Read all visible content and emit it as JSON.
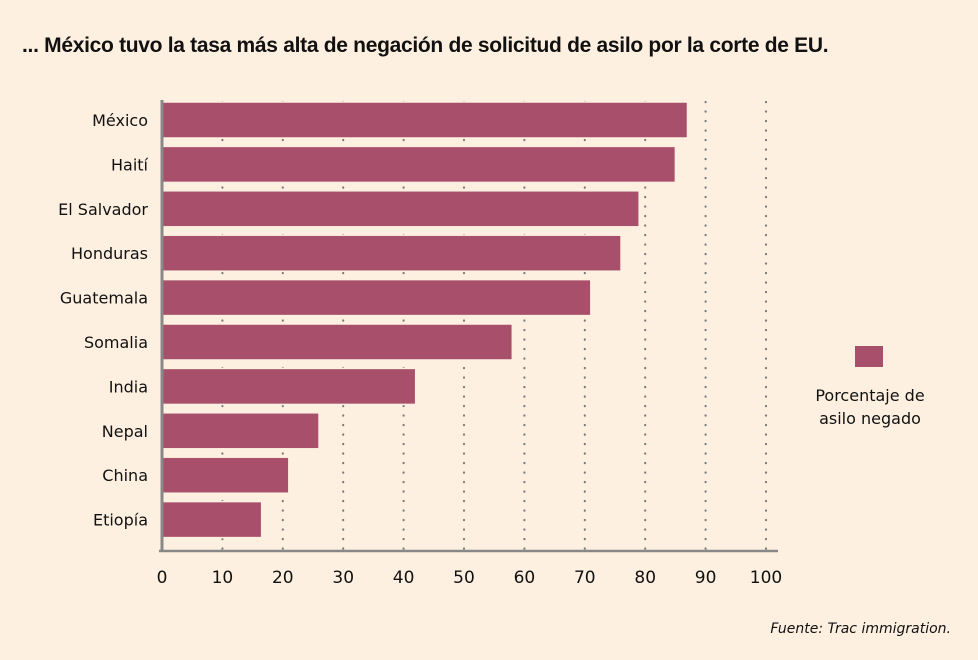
{
  "chart_data": {
    "type": "bar",
    "orientation": "horizontal",
    "title": "... México tuvo la tasa más alta de negación de solicitud de asilo por la corte de EU.",
    "categories": [
      "México",
      "Haití",
      "El Salvador",
      "Honduras",
      "Guatemala",
      "Somalia",
      "India",
      "Nepal",
      "China",
      "Etiopía"
    ],
    "series": [
      {
        "name": "Porcentaje de asilo negado",
        "color": "#a84f6b",
        "values": [
          87,
          85,
          79,
          76,
          71,
          58,
          42,
          26,
          21,
          16.5
        ]
      }
    ],
    "xlabel": "",
    "ylabel": "",
    "xlim": [
      0,
      100
    ],
    "xticks": [
      0,
      10,
      20,
      30,
      40,
      50,
      60,
      70,
      80,
      90,
      100
    ],
    "grid": "vertical dotted",
    "legend": {
      "position": "right",
      "label_line1": "Porcentaje de",
      "label_line2": "asilo negado"
    },
    "source": "Fuente: Trac immigration."
  }
}
